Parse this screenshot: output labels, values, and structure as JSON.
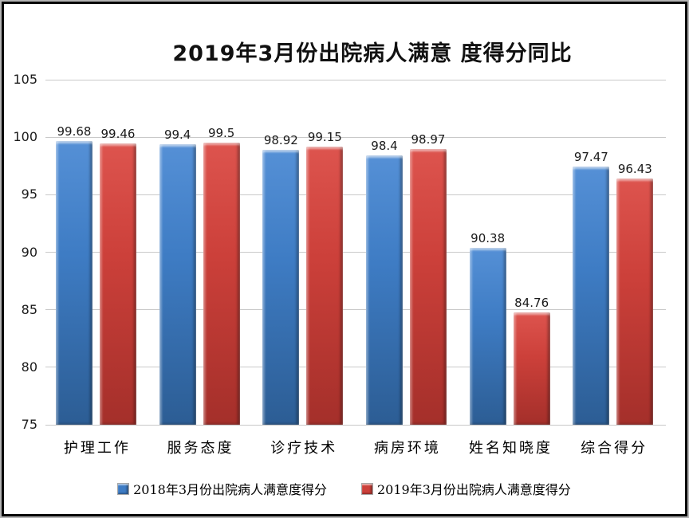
{
  "chart_data": {
    "type": "bar",
    "title": "2019年3月份出院病人满意 度得分同比",
    "categories": [
      "护理工作",
      "服务态度",
      "诊疗技术",
      "病房环境",
      "姓名知晓度",
      "综合得分"
    ],
    "series": [
      {
        "name": "2018年3月份出院病人满意度得分",
        "color": "#3e7cc4",
        "values": [
          99.68,
          99.4,
          98.92,
          98.4,
          90.38,
          97.47
        ]
      },
      {
        "name": "2019年3月份出院病人满意度得分",
        "color": "#cc403a",
        "values": [
          99.46,
          99.5,
          99.15,
          98.97,
          84.76,
          96.43
        ]
      }
    ],
    "ylim": [
      75,
      105
    ],
    "yticks": [
      75,
      80,
      85,
      90,
      95,
      100,
      105
    ],
    "grid": true,
    "data_labels": true,
    "legend_position": "bottom",
    "colors": {
      "gridline": "#c9c9c9",
      "bar_2018": "#3e7cc4",
      "bar_2019": "#cc403a"
    }
  }
}
